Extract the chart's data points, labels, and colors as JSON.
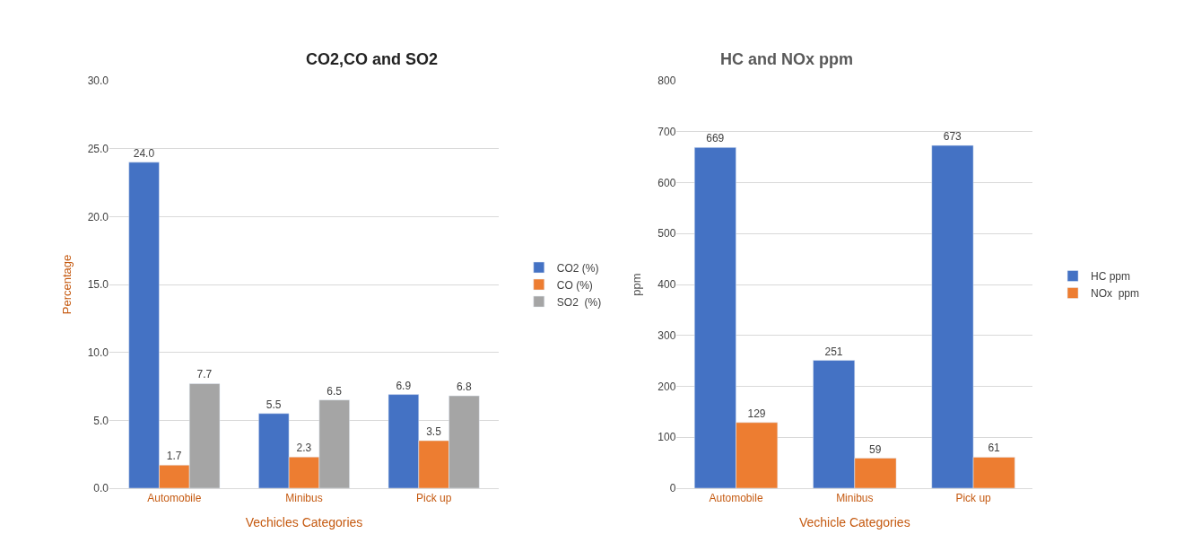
{
  "chart_data": [
    {
      "type": "bar",
      "title": "CO2,CO and SO2",
      "xlabel": "Vechicles Categories",
      "ylabel": "Percentage",
      "categories": [
        "Automobile",
        "Minibus",
        "Pick up"
      ],
      "series": [
        {
          "name": "CO2 (%)",
          "color": "#4472c4",
          "values": [
            24.0,
            5.5,
            6.9
          ],
          "value_labels": [
            "24.0",
            "5.5",
            "6.9"
          ]
        },
        {
          "name": "CO (%)",
          "color": "#ed7d31",
          "values": [
            1.7,
            2.3,
            3.5
          ],
          "value_labels": [
            "1.7",
            "2.3",
            "3.5"
          ]
        },
        {
          "name": "SO2  (%)",
          "color": "#a5a5a5",
          "values": [
            7.7,
            6.5,
            6.8
          ],
          "value_labels": [
            "7.7",
            "6.5",
            "6.8"
          ]
        }
      ],
      "ylim": [
        0,
        30
      ],
      "yticks": [
        {
          "value": 0,
          "label": "0.0"
        },
        {
          "value": 5,
          "label": "5.0"
        },
        {
          "value": 10,
          "label": "10.0"
        },
        {
          "value": 15,
          "label": "15.0"
        },
        {
          "value": 20,
          "label": "20.0"
        },
        {
          "value": 25,
          "label": "25.0"
        },
        {
          "value": 30,
          "label": "30.0"
        }
      ],
      "grid": "y",
      "legend": "right"
    },
    {
      "type": "bar",
      "title": "HC and NOx ppm",
      "xlabel": "Vechicle Categories",
      "ylabel": "ppm",
      "categories": [
        "Automobile",
        "Minibus",
        "Pick up"
      ],
      "series": [
        {
          "name": "HC ppm",
          "color": "#4472c4",
          "values": [
            669,
            251,
            673
          ]
        },
        {
          "name": "NOx  ppm",
          "color": "#ed7d31",
          "values": [
            129,
            59,
            61
          ]
        }
      ],
      "ylim": [
        0,
        800
      ],
      "yticks": [
        0,
        100,
        200,
        300,
        400,
        500,
        600,
        700,
        800
      ],
      "grid": "y",
      "legend": "right",
      "data_labels": true
    }
  ]
}
